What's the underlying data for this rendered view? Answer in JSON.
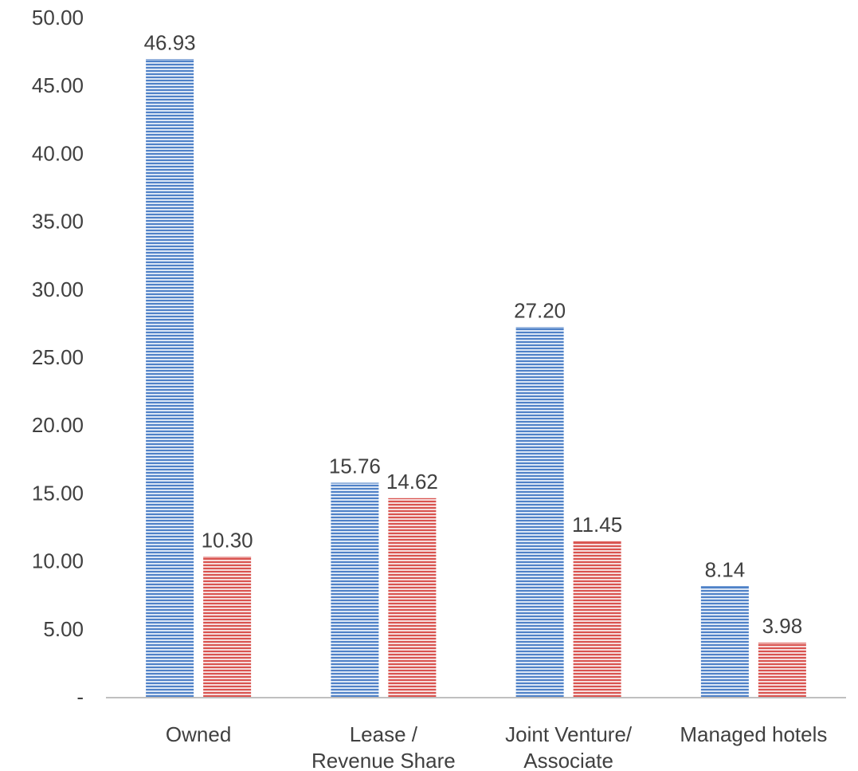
{
  "chart_data": {
    "type": "bar",
    "categories": [
      [
        "Owned"
      ],
      [
        "Lease /",
        "Revenue Share"
      ],
      [
        "Joint Venture/",
        "Associate"
      ],
      [
        "Managed hotels"
      ]
    ],
    "series": [
      {
        "values": [
          46.93,
          15.76,
          27.2,
          8.14
        ],
        "color": "#4f81c7"
      },
      {
        "values": [
          10.3,
          14.62,
          11.45,
          3.98
        ],
        "color": "#d9534f"
      }
    ],
    "data_labels": [
      [
        "46.93",
        "15.76",
        "27.20",
        "8.14"
      ],
      [
        "10.30",
        "14.62",
        "11.45",
        "3.98"
      ]
    ],
    "yticks": [
      "-",
      "5.00",
      "10.00",
      "15.00",
      "20.00",
      "25.00",
      "30.00",
      "35.00",
      "40.00",
      "45.00",
      "50.00"
    ],
    "ylim": [
      0,
      50
    ],
    "grid": false,
    "legend": "none",
    "axis_color": "#bfbfbf"
  }
}
